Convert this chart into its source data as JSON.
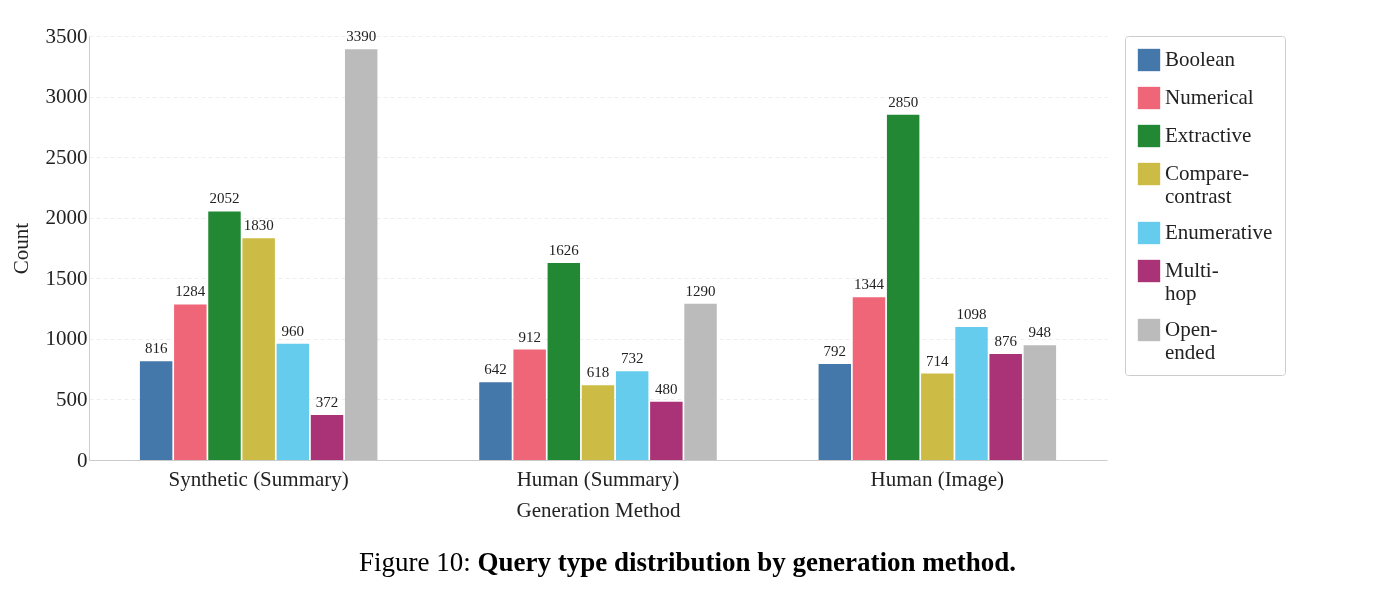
{
  "chart_data": {
    "type": "bar",
    "xlabel": "Generation Method",
    "ylabel": "Count",
    "categories": [
      "Synthetic (Summary)",
      "Human (Summary)",
      "Human (Image)"
    ],
    "series": [
      {
        "name": "Boolean",
        "color": "#4477aa",
        "values": [
          816,
          642,
          792
        ]
      },
      {
        "name": "Numerical",
        "color": "#ee6677",
        "values": [
          1284,
          912,
          1344
        ]
      },
      {
        "name": "Extractive",
        "color": "#228833",
        "values": [
          2052,
          1626,
          2850
        ]
      },
      {
        "name": "Compare-contrast",
        "color": "#ccbb44",
        "values": [
          1830,
          618,
          714
        ]
      },
      {
        "name": "Enumerative",
        "color": "#66ccee",
        "values": [
          960,
          732,
          1098
        ]
      },
      {
        "name": "Multi-hop",
        "color": "#aa3377",
        "values": [
          372,
          480,
          876
        ]
      },
      {
        "name": "Open-ended",
        "color": "#bbbbbb",
        "values": [
          3390,
          1290,
          948
        ]
      }
    ],
    "ylim": [
      0,
      3500
    ],
    "yticks": [
      0,
      500,
      1000,
      1500,
      2000,
      2500,
      3000,
      3500
    ],
    "grid": "y",
    "legend": "right",
    "data_labels": true,
    "annotations": [
      "Figure 10: Query type distribution by generation method."
    ]
  }
}
